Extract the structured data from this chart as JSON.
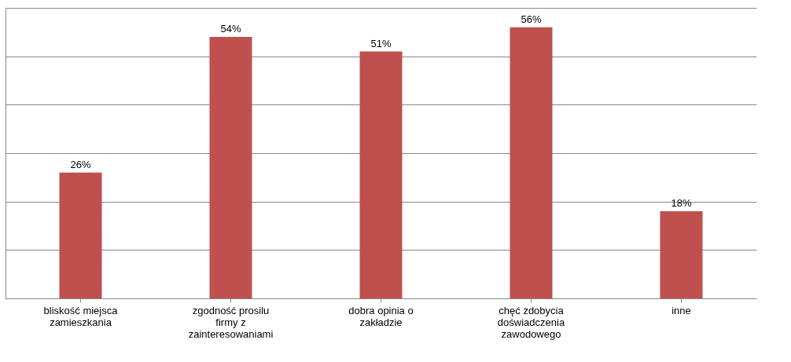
{
  "chart_data": {
    "type": "bar",
    "categories": [
      "bliskość miejsca zamieszkania",
      "zgodność prosilu firmy z zainteresowaniami",
      "dobra opinia o zakładzie",
      "chęć zdobycia doświadczenia zawodowego",
      "inne"
    ],
    "values": [
      26,
      54,
      51,
      56,
      18
    ],
    "value_labels": [
      "26%",
      "54%",
      "51%",
      "56%",
      "18%"
    ],
    "color": "#c0504d",
    "ylim": [
      0,
      60
    ],
    "yticks": [
      {
        "value": 0,
        "label": null
      },
      {
        "value": 10,
        "label": null
      },
      {
        "value": 20,
        "label": null
      },
      {
        "value": 30,
        "label": null
      },
      {
        "value": 40,
        "label": null
      },
      {
        "value": 50,
        "label": null
      },
      {
        "value": 60,
        "label": null
      }
    ],
    "grid": "y"
  }
}
